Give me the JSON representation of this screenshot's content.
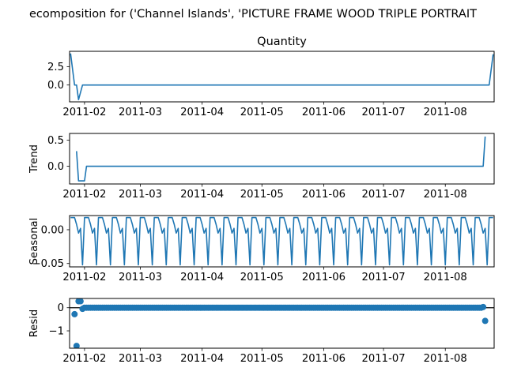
{
  "chart_data": {
    "type": "line",
    "title": "ecomposition for ('Channel Islands', 'PICTURE FRAME WOOD TRIPLE PORTRAIT",
    "series_color": "#1f77b4",
    "x_tick_labels": [
      "2011-02",
      "2011-03",
      "2011-04",
      "2011-05",
      "2011-06",
      "2011-07",
      "2011-08"
    ],
    "panels": [
      {
        "id": "observed",
        "type": "line",
        "subtitle": "Quantity",
        "ylabel": "",
        "ylim": [
          -2.3,
          4.6
        ],
        "yticks": [
          0.0,
          2.5
        ],
        "ytick_labels": [
          "0.0",
          "2.5"
        ],
        "x": [
          "2011-01-25",
          "2011-01-27",
          "2011-01-28",
          "2011-01-29",
          "2011-01-31",
          "2011-08-23",
          "2011-08-25"
        ],
        "values": [
          4.3,
          0,
          0,
          -2.0,
          0,
          0,
          4.2
        ]
      },
      {
        "id": "trend",
        "type": "line",
        "subtitle": "",
        "ylabel": "Trend",
        "ylim": [
          -0.34,
          0.63
        ],
        "yticks": [
          0.0,
          0.5
        ],
        "ytick_labels": [
          "0.0",
          "0.5"
        ],
        "x": [
          "2011-01-28",
          "2011-01-29",
          "2011-02-01",
          "2011-02-02",
          "2011-08-20",
          "2011-08-21"
        ],
        "values": [
          0.29,
          -0.28,
          -0.28,
          0,
          0,
          0.57
        ]
      },
      {
        "id": "seasonal",
        "type": "line",
        "subtitle": "",
        "ylabel": "Seasonal",
        "ylim": [
          -0.055,
          0.021
        ],
        "yticks": [
          -0.05,
          0.0
        ],
        "ytick_labels": [
          "−0.05",
          "0.00"
        ],
        "period_days": 7,
        "pattern": [
          0.018,
          0.018,
          0.018,
          0.008,
          -0.005,
          0.002,
          -0.052
        ],
        "x_start": "2011-01-25",
        "x_end": "2011-08-25"
      },
      {
        "id": "resid",
        "type": "scatter",
        "subtitle": "",
        "ylabel": "Resid",
        "ylim": [
          -1.75,
          0.4
        ],
        "yticks": [
          -1,
          0
        ],
        "ytick_labels": [
          "−1",
          "0"
        ],
        "baseline": 0,
        "x_start": "2011-01-31",
        "x_end": "2011-08-19",
        "default_value": 0,
        "special_points": [
          {
            "x": "2011-01-27",
            "y": -0.28
          },
          {
            "x": "2011-01-28",
            "y": -1.65
          },
          {
            "x": "2011-01-29",
            "y": 0.28
          },
          {
            "x": "2011-01-30",
            "y": 0.28
          },
          {
            "x": "2011-01-31",
            "y": -0.05
          },
          {
            "x": "2011-08-20",
            "y": 0.03
          },
          {
            "x": "2011-08-21",
            "y": -0.57
          }
        ]
      }
    ]
  }
}
